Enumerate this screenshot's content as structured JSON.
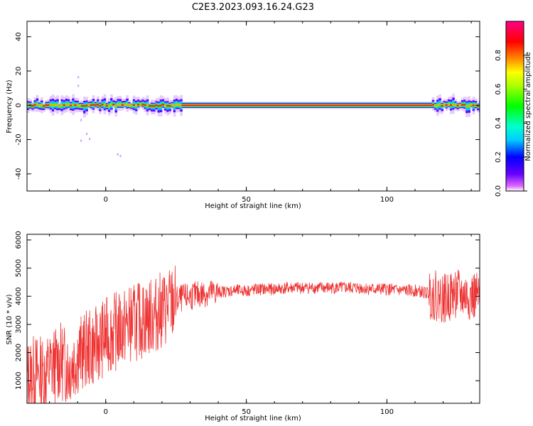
{
  "title": "C2E3.2023.093.16.24.G23",
  "chart_data": [
    {
      "type": "heatmap",
      "xlabel": "Height of straight line (km)",
      "ylabel": "Frequency (Hz)",
      "xlim": [
        -28,
        133
      ],
      "ylim": [
        -50,
        49
      ],
      "xticks": [
        0,
        50,
        100
      ],
      "yticks": [
        -40,
        -20,
        0,
        20,
        40
      ],
      "xticklabels": [
        "0",
        "50",
        "100"
      ],
      "yticklabels": [
        "-40",
        "-20",
        "0",
        "20",
        "40"
      ],
      "colorbar": {
        "label": "Normalized spectral amplitude",
        "range": [
          0,
          1
        ],
        "ticks": [
          0.0,
          0.2,
          0.4,
          0.6,
          0.8
        ],
        "ticklabels": [
          "0.0",
          "0.2",
          "0.4",
          "0.6",
          "0.8"
        ],
        "colors": [
          "#ffffff",
          "#6600ff",
          "#0000ff",
          "#00ffff",
          "#00ff00",
          "#ffff00",
          "#ff8800",
          "#ff0000",
          "#ff0088"
        ]
      },
      "band_center_hz": 0,
      "band_peak_color": "#ff0000",
      "band_edge_color": "#0000ff"
    },
    {
      "type": "line",
      "xlabel": "Height of straight line (km)",
      "ylabel": "SNR (10 * v/v)",
      "xlim": [
        -28,
        133
      ],
      "ylim": [
        200,
        6200
      ],
      "xticks": [
        0,
        50,
        100
      ],
      "yticks": [
        1000,
        2000,
        3000,
        4000,
        5000,
        6000
      ],
      "xticklabels": [
        "0",
        "50",
        "100"
      ],
      "yticklabels": [
        "1000",
        "2000",
        "3000",
        "4000",
        "5000",
        "6000"
      ],
      "line_color": "#ee3333",
      "x": [
        -28,
        -25,
        -22,
        -19,
        -16,
        -13,
        -10,
        -7,
        -4,
        -1,
        2,
        5,
        8,
        11,
        14,
        17,
        20,
        23,
        26,
        30,
        35,
        40,
        45,
        50,
        55,
        60,
        65,
        70,
        75,
        80,
        85,
        90,
        95,
        100,
        105,
        110,
        115,
        118,
        121,
        124,
        127,
        130,
        133
      ],
      "values": [
        1100,
        1300,
        1200,
        1500,
        1700,
        1500,
        1900,
        2100,
        2200,
        2500,
        2700,
        2800,
        3000,
        3100,
        3200,
        3300,
        3500,
        3700,
        3900,
        4000,
        4100,
        4150,
        4200,
        4200,
        4250,
        4250,
        4300,
        4300,
        4300,
        4300,
        4300,
        4300,
        4250,
        4250,
        4200,
        4200,
        4100,
        4000,
        3900,
        4100,
        4000,
        4000,
        3900
      ]
    }
  ]
}
